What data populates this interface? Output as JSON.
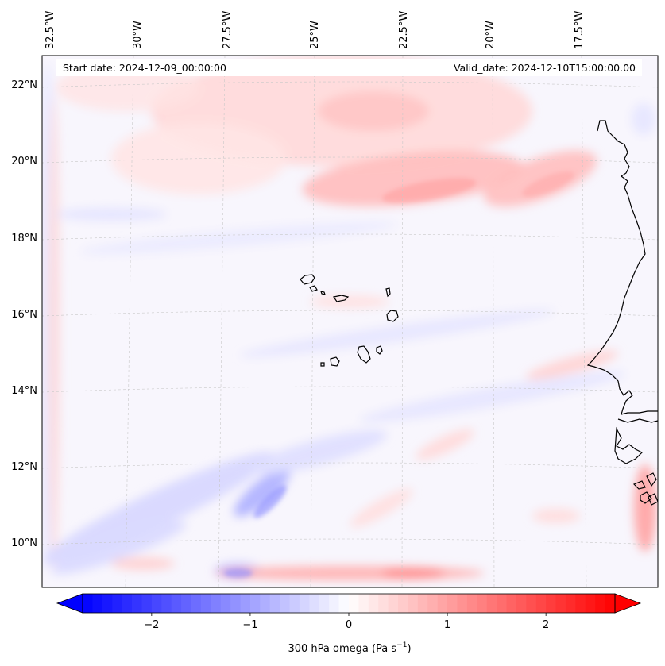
{
  "map": {
    "start_date_label": "Start date: 2024-12-09_00:00:00",
    "valid_date_label": "Valid_date: 2024-12-10T15:00:00.00",
    "lon_labels": [
      "32.5°W",
      "30°W",
      "27.5°W",
      "25°W",
      "22.5°W",
      "20°W",
      "17.5°W"
    ],
    "lat_labels": [
      "22°N",
      "20°N",
      "18°N",
      "16°N",
      "14°N",
      "12°N",
      "10°N"
    ],
    "field": "300 hPa omega",
    "units": "Pa s⁻¹",
    "colormap": "bwr",
    "color_range": [
      -2.7,
      2.7
    ]
  },
  "colorbar": {
    "label_main": "300 hPa omega (Pa s",
    "label_exp": "−1",
    "label_close": ")",
    "ticks": [
      "−2",
      "−1",
      "0",
      "1",
      "2"
    ],
    "tick_values": [
      -2,
      -1,
      0,
      1,
      2
    ],
    "vmin": -2.7,
    "vmax": 2.7,
    "colors": {
      "negative": "#0000ff",
      "zero": "#ffffff",
      "positive": "#ff0000"
    }
  }
}
